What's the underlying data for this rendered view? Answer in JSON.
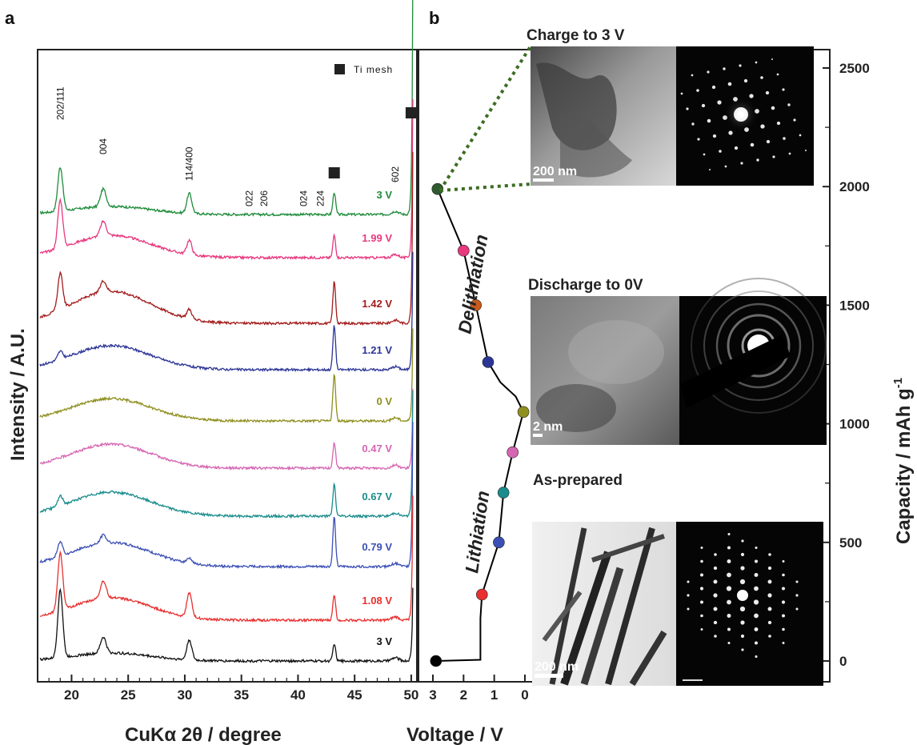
{
  "panels": {
    "a": "a",
    "b": "b"
  },
  "legend": {
    "ti_mesh": "Ti mesh"
  },
  "chart_data": [
    {
      "type": "line",
      "panel": "a",
      "xlabel": "CuKα 2θ  /  degree",
      "ylabel": "Intensity  /  A.U.",
      "xlim": [
        17,
        50.5
      ],
      "xticks": [
        "20",
        "25",
        "30",
        "35",
        "40",
        "45",
        "50"
      ],
      "peaks": [
        {
          "label": "202/111",
          "x": 19.0
        },
        {
          "label": "004",
          "x": 22.8
        },
        {
          "label": "114/400",
          "x": 30.4
        },
        {
          "label": "022",
          "x": 35.7
        },
        {
          "label": "206",
          "x": 37.0
        },
        {
          "label": "024",
          "x": 40.5
        },
        {
          "label": "224",
          "x": 42.0
        },
        {
          "label": "602",
          "x": 48.6
        }
      ],
      "ti_mesh_peaks": [
        43.2,
        50.0
      ],
      "series": [
        {
          "name": "3 V",
          "color": "#1e8c3a"
        },
        {
          "name": "1.99 V",
          "color": "#e8387e"
        },
        {
          "name": "1.42 V",
          "color": "#a31b1b"
        },
        {
          "name": "1.21 V",
          "color": "#2b3596"
        },
        {
          "name": "0 V",
          "color": "#8f8f1f"
        },
        {
          "name": "0.47 V",
          "color": "#d666b3"
        },
        {
          "name": "0.67 V",
          "color": "#1a8c8c"
        },
        {
          "name": "0.79 V",
          "color": "#3b4fb5"
        },
        {
          "name": "1.08 V",
          "color": "#e83030"
        },
        {
          "name": "3 V",
          "color": "#111111"
        }
      ]
    },
    {
      "type": "line",
      "panel": "b",
      "xlabel": "Voltage  /  V",
      "ylabel": "Capacity  /  mAh g",
      "ylabel_sup": "-1",
      "xlim": [
        3,
        0
      ],
      "ylim": [
        -100,
        2600
      ],
      "xticks": [
        "3",
        "2",
        "1",
        "0"
      ],
      "yticks": [
        "0",
        "500",
        "1000",
        "1500",
        "2000",
        "2500"
      ],
      "annotations": [
        "Lithiation",
        "Delithiation"
      ],
      "points": [
        {
          "v": 2.9,
          "c": 0,
          "color": "#000000"
        },
        {
          "v": 1.4,
          "c": 280,
          "color": "#e83030"
        },
        {
          "v": 0.85,
          "c": 500,
          "color": "#3b4fb5"
        },
        {
          "v": 0.7,
          "c": 710,
          "color": "#1a8c8c"
        },
        {
          "v": 0.4,
          "c": 880,
          "color": "#d666b3"
        },
        {
          "v": 0.05,
          "c": 1050,
          "color": "#8f8f1f"
        },
        {
          "v": 1.2,
          "c": 1260,
          "color": "#2b3596"
        },
        {
          "v": 1.6,
          "c": 1500,
          "color": "#c85a1e"
        },
        {
          "v": 2.0,
          "c": 1730,
          "color": "#e8387e"
        },
        {
          "v": 2.85,
          "c": 1990,
          "color": "#2e5a2e"
        }
      ]
    }
  ],
  "insets": [
    {
      "title": "Charge to 3 V",
      "scale": "200 nm"
    },
    {
      "title": "Discharge to 0V",
      "scale": "2 nm"
    },
    {
      "title": "As-prepared",
      "scale": "200 nm"
    }
  ]
}
